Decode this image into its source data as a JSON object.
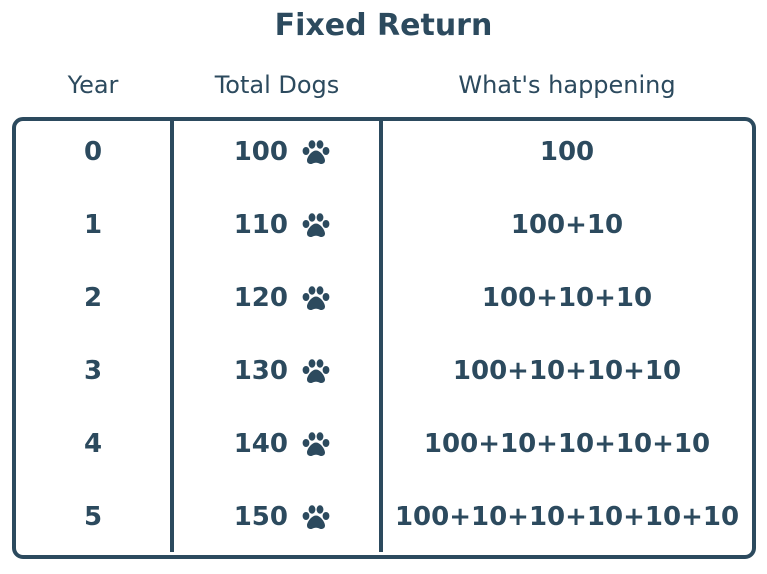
{
  "title": "Fixed Return",
  "headers": {
    "year": "Year",
    "dogs": "Total Dogs",
    "what": "What's happening"
  },
  "rows": [
    {
      "year": "0",
      "dogs": "100",
      "what": "100"
    },
    {
      "year": "1",
      "dogs": "110",
      "what": "100+10"
    },
    {
      "year": "2",
      "dogs": "120",
      "what": "100+10+10"
    },
    {
      "year": "3",
      "dogs": "130",
      "what": "100+10+10+10"
    },
    {
      "year": "4",
      "dogs": "140",
      "what": "100+10+10+10+10"
    },
    {
      "year": "5",
      "dogs": "150",
      "what": "100+10+10+10+10+10"
    }
  ],
  "icons": {
    "paw": "paw-print-icon"
  },
  "colors": {
    "ink": "#2c4a5e",
    "background": "#ffffff"
  }
}
